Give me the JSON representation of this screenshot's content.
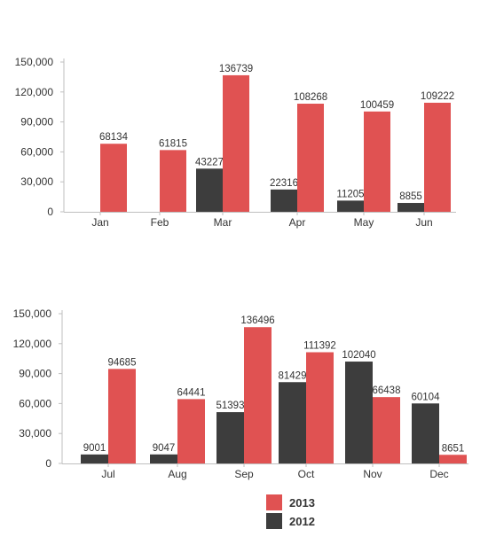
{
  "chart_data": [
    {
      "type": "bar",
      "categories": [
        "Jan",
        "Feb",
        "Mar",
        "Apr",
        "May",
        "Jun"
      ],
      "series": [
        {
          "name": "2012",
          "color": "#3d3d3d",
          "values": [
            null,
            null,
            43227,
            22316,
            11205,
            8855
          ]
        },
        {
          "name": "2013",
          "color": "#e05252",
          "values": [
            68134,
            61815,
            136739,
            108268,
            100459,
            109222
          ]
        }
      ],
      "data_labels": {
        "2012": [
          "",
          "",
          "43227",
          "22316",
          "11205",
          "8855"
        ],
        "2013": [
          "68134",
          "61815",
          "136739",
          "108268",
          "100459",
          "109222"
        ]
      },
      "yticks": [
        "0",
        "30,000",
        "60,000",
        "90,000",
        "120,000",
        "150,000"
      ],
      "ylim": [
        0,
        150000
      ],
      "title": "",
      "xlabel": "",
      "ylabel": ""
    },
    {
      "type": "bar",
      "categories": [
        "Jul",
        "Aug",
        "Sep",
        "Oct",
        "Nov",
        "Dec"
      ],
      "series": [
        {
          "name": "2012",
          "color": "#3d3d3d",
          "values": [
            9001,
            9047,
            51393,
            81429,
            102040,
            60104
          ]
        },
        {
          "name": "2013",
          "color": "#e05252",
          "values": [
            94685,
            64441,
            136496,
            111392,
            66438,
            8651
          ]
        }
      ],
      "data_labels": {
        "2012": [
          "9001",
          "9047",
          "51393",
          "81429",
          "102040",
          "60104"
        ],
        "2013": [
          "94685",
          "64441",
          "136496",
          "111392",
          "66438",
          "8651"
        ]
      },
      "yticks": [
        "0",
        "30,000",
        "60,000",
        "90,000",
        "120,000",
        "150,000"
      ],
      "ylim": [
        0,
        150000
      ],
      "title": "",
      "xlabel": "",
      "ylabel": ""
    }
  ],
  "legend": {
    "placement": "bottom-center",
    "items": [
      {
        "label": "2013",
        "color": "#e05252"
      },
      {
        "label": "2012",
        "color": "#3d3d3d"
      }
    ]
  }
}
